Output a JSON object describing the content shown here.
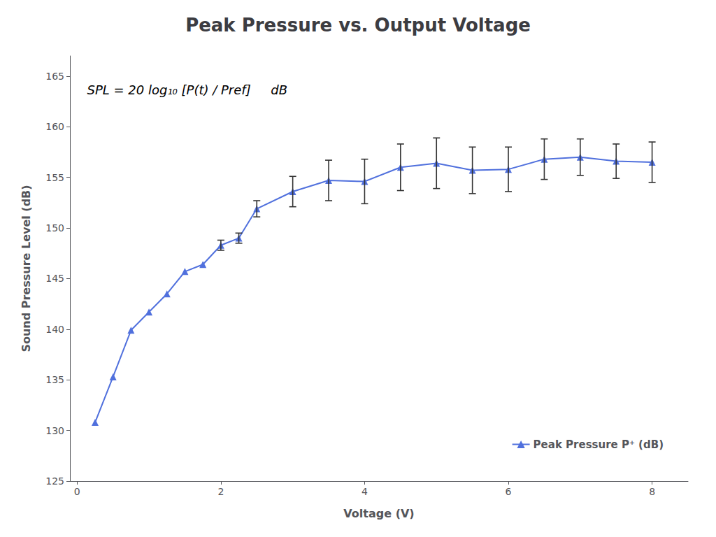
{
  "chart_data": {
    "type": "line",
    "title": "Peak Pressure vs. Output Voltage",
    "xlabel": "Voltage (V)",
    "ylabel": "Sound Pressure Level (dB)",
    "x": [
      0.25,
      0.5,
      0.75,
      1.0,
      1.25,
      1.5,
      1.75,
      2.0,
      2.25,
      2.5,
      3.0,
      3.5,
      4.0,
      4.5,
      5.0,
      5.5,
      6.0,
      6.5,
      7.0,
      7.5,
      8.0
    ],
    "series": [
      {
        "name": "Peak Pressure P⁺ (dB)",
        "marker": "triangle",
        "values": [
          130.8,
          135.3,
          139.9,
          141.7,
          143.5,
          145.7,
          146.4,
          148.3,
          149.0,
          151.9,
          153.6,
          154.7,
          154.6,
          156.0,
          156.4,
          155.7,
          155.8,
          156.8,
          157.0,
          156.6,
          156.5
        ],
        "yerr": [
          null,
          null,
          null,
          null,
          null,
          null,
          null,
          0.5,
          0.5,
          0.8,
          1.5,
          2.0,
          2.2,
          2.3,
          2.5,
          2.3,
          2.2,
          2.0,
          1.8,
          1.7,
          2.0
        ]
      }
    ],
    "xlim": [
      -0.1,
      8.5
    ],
    "xticks": [
      0,
      2,
      4,
      6,
      8
    ],
    "ylim": [
      125,
      167
    ],
    "yticks": [
      125,
      130,
      135,
      140,
      145,
      150,
      155,
      160,
      165
    ],
    "grid": false,
    "legend": "lower right",
    "annotations": [
      {
        "text": "SPL = 20 log₁₀ [P(t) / Pref]     dB"
      }
    ]
  }
}
